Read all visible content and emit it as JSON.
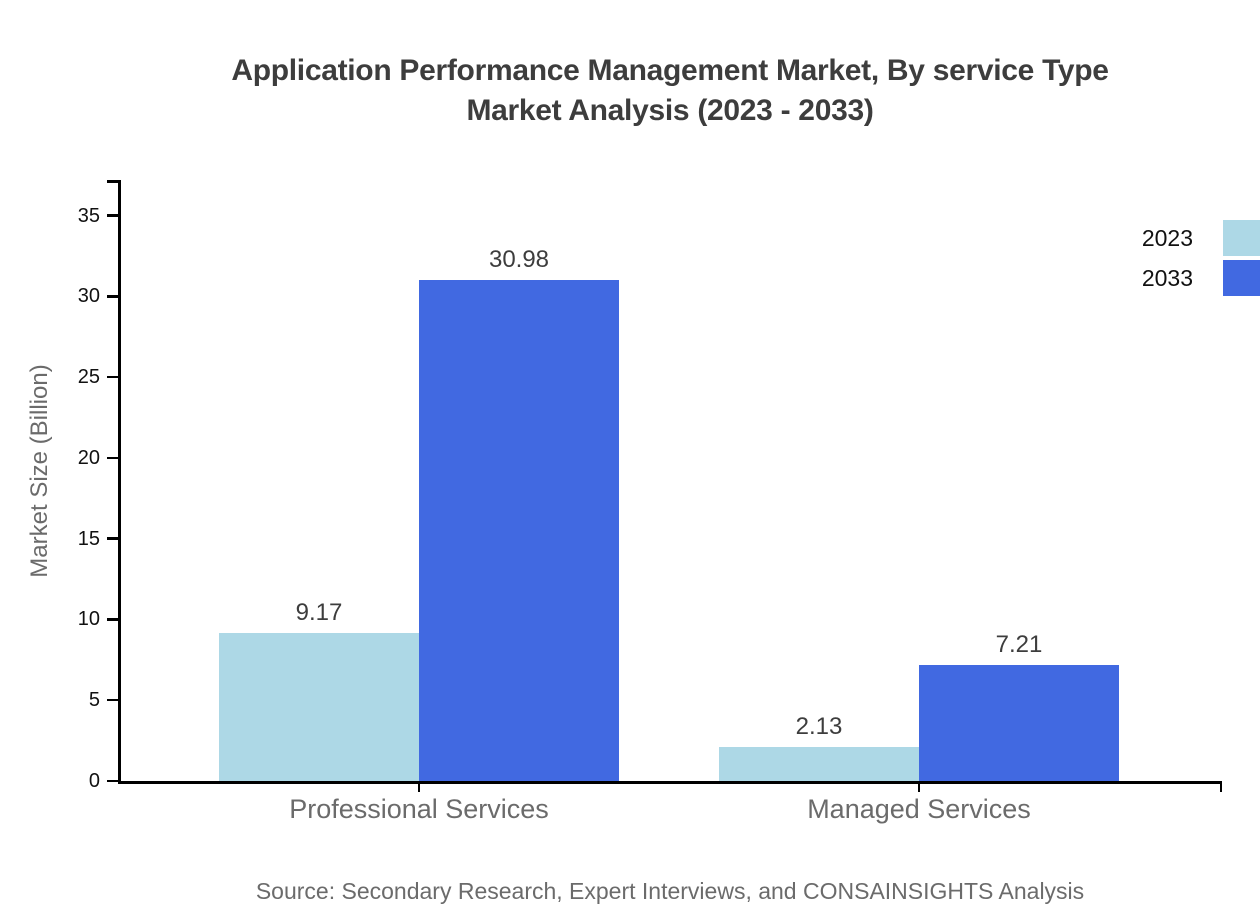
{
  "title": {
    "line1": "Application Performance Management Market, By service Type",
    "line2": "Market Analysis (2023 - 2033)"
  },
  "source_note": "Source: Secondary Research, Expert Interviews, and CONSAINSIGHTS Analysis",
  "chart_data": {
    "type": "bar",
    "title": "Application Performance Management Market, By service Type Market Analysis (2023 - 2033)",
    "categories": [
      "Professional Services",
      "Managed Services"
    ],
    "series": [
      {
        "name": "2023",
        "color": "#add8e6",
        "values": [
          9.17,
          2.13
        ],
        "value_labels": [
          "9.17",
          "2.13"
        ]
      },
      {
        "name": "2033",
        "color": "#4169e1",
        "values": [
          30.98,
          7.21
        ],
        "value_labels": [
          "30.98",
          "7.21"
        ]
      }
    ],
    "xlabel": "",
    "ylabel": "Market Size (Billion)",
    "ylim": [
      0,
      37.2
    ],
    "yticks": [
      0,
      5,
      10,
      15,
      20,
      25,
      30,
      35
    ],
    "grid": false,
    "legend_position": "upper-right",
    "bar_value_labels_shown": true
  },
  "colors": {
    "series_2023": "#add8e6",
    "series_2033": "#4169e1",
    "axis": "#000000",
    "title_text": "#3d3d3d",
    "muted_text": "#6b6b6b",
    "tick_text": "#111111",
    "background": "#ffffff"
  }
}
